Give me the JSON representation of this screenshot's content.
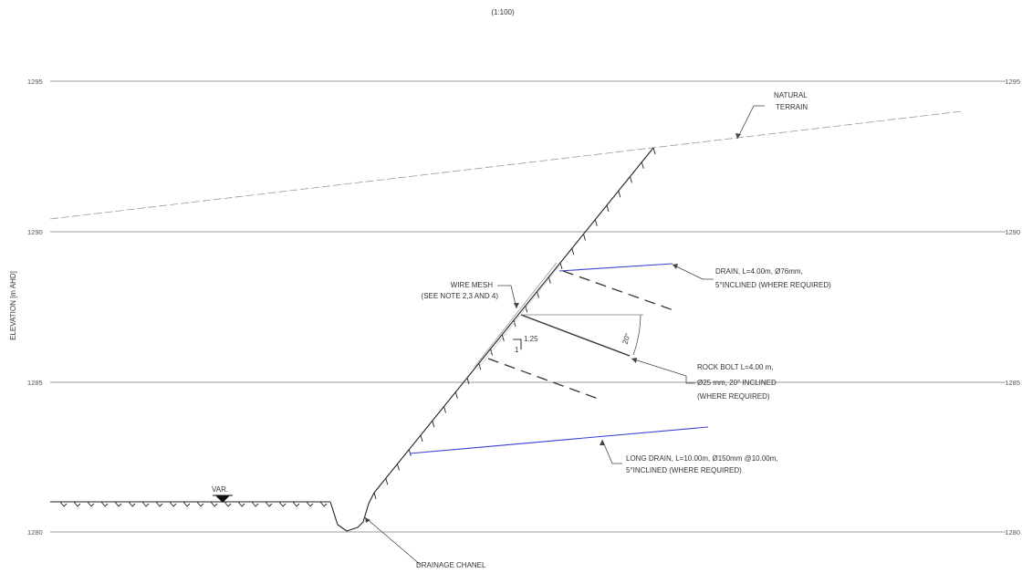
{
  "scale_label": "(1:100)",
  "axis_label": "ELEVATION [m AHD]",
  "elevations": [
    "1295",
    "1290",
    "1285",
    "1280"
  ],
  "annotations": {
    "natural_terrain": [
      "NATURAL",
      "TERRAIN"
    ],
    "drain": [
      "DRAIN, L=4.00m, Ø76mm,",
      "5°INCLINED (WHERE REQUIRED)"
    ],
    "wire_mesh": [
      "WIRE MESH",
      "(SEE NOTE 2,3 AND 4)"
    ],
    "rock_bolt": [
      "ROCK BOLT L=4.00 m,",
      "Ø25 mm, 20° INCLINED",
      "(WHERE REQUIRED)"
    ],
    "long_drain": [
      "LONG DRAIN, L=10.00m, Ø150mm @10.00m,",
      "5°INCLINED (WHERE REQUIRED)"
    ],
    "drainage_channel": "DRAINAGE CHANEL",
    "var_label": "VAR.",
    "slope_rise": "1.25",
    "slope_run": "1",
    "angle": "20°"
  },
  "colors": {
    "drain": "#3a3fd6",
    "ground": "#222222",
    "grid": "#777777"
  }
}
